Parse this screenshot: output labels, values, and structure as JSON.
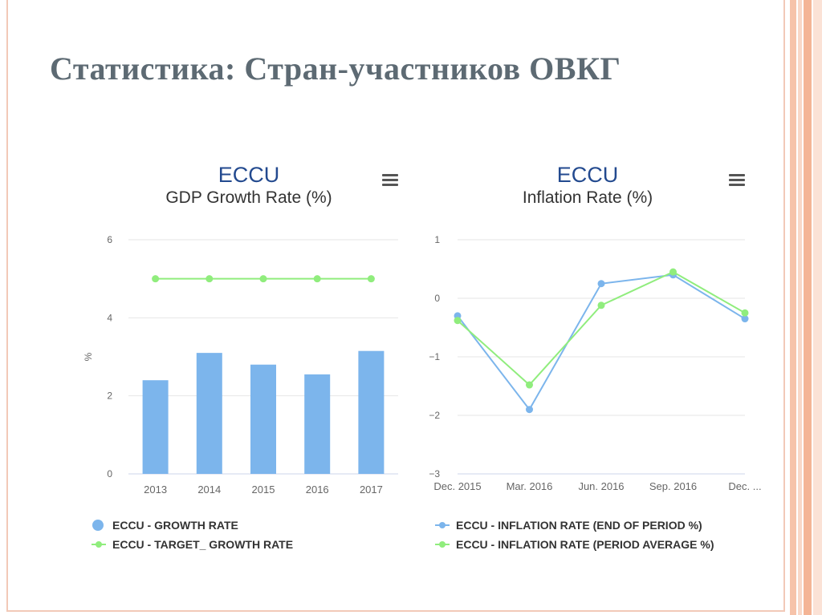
{
  "slide": {
    "title": "Статистика: Стран-участников ОВКГ"
  },
  "colors": {
    "bar_blue": "#7cb5ec",
    "line_green": "#90ed7d",
    "line_blue": "#7cb5ec",
    "title_blue": "#234a8f"
  },
  "charts": [
    {
      "title": "ECCU",
      "subtitle": "GDP Growth Rate (%)",
      "menu_icon": "hamburger-menu-icon",
      "legend": [
        {
          "label": "ECCU - GROWTH RATE",
          "symbol": "circle"
        },
        {
          "label": "ECCU - TARGET_ GROWTH RATE",
          "symbol": "line-marker"
        }
      ]
    },
    {
      "title": "ECCU",
      "subtitle": "Inflation Rate (%)",
      "menu_icon": "hamburger-menu-icon",
      "legend": [
        {
          "label": "ECCU - INFLATION RATE (END OF PERIOD %)",
          "symbol": "line-marker"
        },
        {
          "label": "ECCU - INFLATION RATE (PERIOD AVERAGE %)",
          "symbol": "line-marker"
        }
      ]
    }
  ],
  "chart_data": [
    {
      "type": "bar",
      "title": "ECCU",
      "subtitle": "GDP Growth Rate (%)",
      "ylabel": "%",
      "categories": [
        "2013",
        "2014",
        "2015",
        "2016",
        "2017"
      ],
      "ylim": [
        0,
        6
      ],
      "yticks": [
        "0",
        "2",
        "4",
        "6"
      ],
      "grid": true,
      "legend_position": "bottom-left",
      "series": [
        {
          "name": "ECCU - GROWTH RATE",
          "type": "bar",
          "values": [
            2.4,
            3.1,
            2.8,
            2.55,
            3.15
          ]
        },
        {
          "name": "ECCU - TARGET_ GROWTH RATE",
          "type": "line",
          "values": [
            5.0,
            5.0,
            5.0,
            5.0,
            5.0
          ]
        }
      ]
    },
    {
      "type": "line",
      "title": "ECCU",
      "subtitle": "Inflation Rate (%)",
      "categories": [
        "Dec. 2015",
        "Mar. 2016",
        "Jun. 2016",
        "Sep. 2016",
        "Dec. ..."
      ],
      "ylim": [
        -3,
        1
      ],
      "yticks": [
        "−3",
        "−2",
        "−1",
        "0",
        "1"
      ],
      "grid": true,
      "legend_position": "bottom-left",
      "series": [
        {
          "name": "ECCU - INFLATION RATE (END OF PERIOD %)",
          "values": [
            -0.3,
            -1.9,
            0.25,
            0.4,
            -0.35
          ]
        },
        {
          "name": "ECCU - INFLATION RATE (PERIOD AVERAGE %)",
          "values": [
            -0.38,
            -1.48,
            -0.12,
            0.45,
            -0.25
          ]
        }
      ]
    }
  ]
}
